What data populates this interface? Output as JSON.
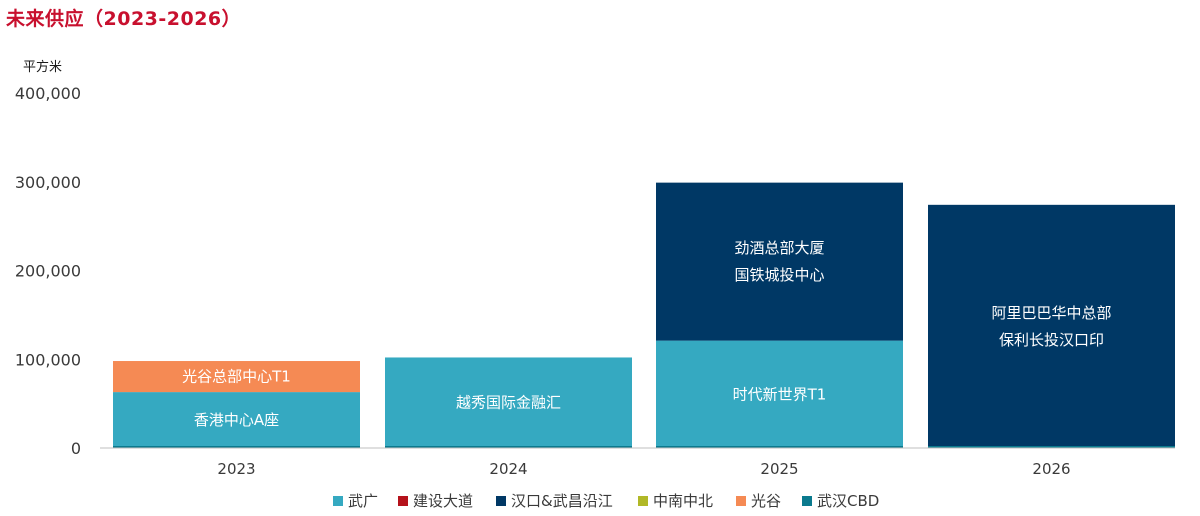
{
  "chart_data": {
    "type": "bar",
    "stacked": true,
    "title": "未来供应（2023-2026）",
    "ylabel": "平方米",
    "ylim": [
      0,
      400000
    ],
    "yticks": [
      0,
      100000,
      200000,
      300000,
      400000
    ],
    "ytick_labels": [
      "0",
      "100,000",
      "200,000",
      "300,000",
      "400,000"
    ],
    "grid": false,
    "legend_position": "bottom",
    "categories": [
      "2023",
      "2024",
      "2025",
      "2026"
    ],
    "series": [
      {
        "name": "武广",
        "color": "#35a9c1",
        "values": [
          63000,
          102000,
          121000,
          0
        ]
      },
      {
        "name": "建设大道",
        "color": "#b5121b",
        "values": [
          0,
          0,
          0,
          0
        ]
      },
      {
        "name": "汉口&武昌沿江",
        "color": "#003865",
        "values": [
          0,
          0,
          178000,
          274000
        ]
      },
      {
        "name": "中南中北",
        "color": "#b1b827",
        "values": [
          0,
          0,
          0,
          0
        ]
      },
      {
        "name": "光谷",
        "color": "#f58a54",
        "values": [
          35000,
          0,
          0,
          0
        ]
      },
      {
        "name": "武汉CBD",
        "color": "#0b7a8e",
        "values": [
          0,
          0,
          0,
          0
        ]
      }
    ],
    "segment_labels": [
      {
        "category": 0,
        "series": 0,
        "lines": [
          "香港中心A座"
        ]
      },
      {
        "category": 0,
        "series": 4,
        "lines": [
          "光谷总部中心T1"
        ]
      },
      {
        "category": 1,
        "series": 0,
        "lines": [
          "越秀国际金融汇"
        ]
      },
      {
        "category": 2,
        "series": 0,
        "lines": [
          "时代新世界T1"
        ]
      },
      {
        "category": 2,
        "series": 2,
        "lines": [
          "劲酒总部大厦",
          "国铁城投中心"
        ]
      },
      {
        "category": 3,
        "series": 2,
        "lines": [
          "阿里巴巴华中总部",
          "保利长投汉口印"
        ]
      }
    ]
  }
}
